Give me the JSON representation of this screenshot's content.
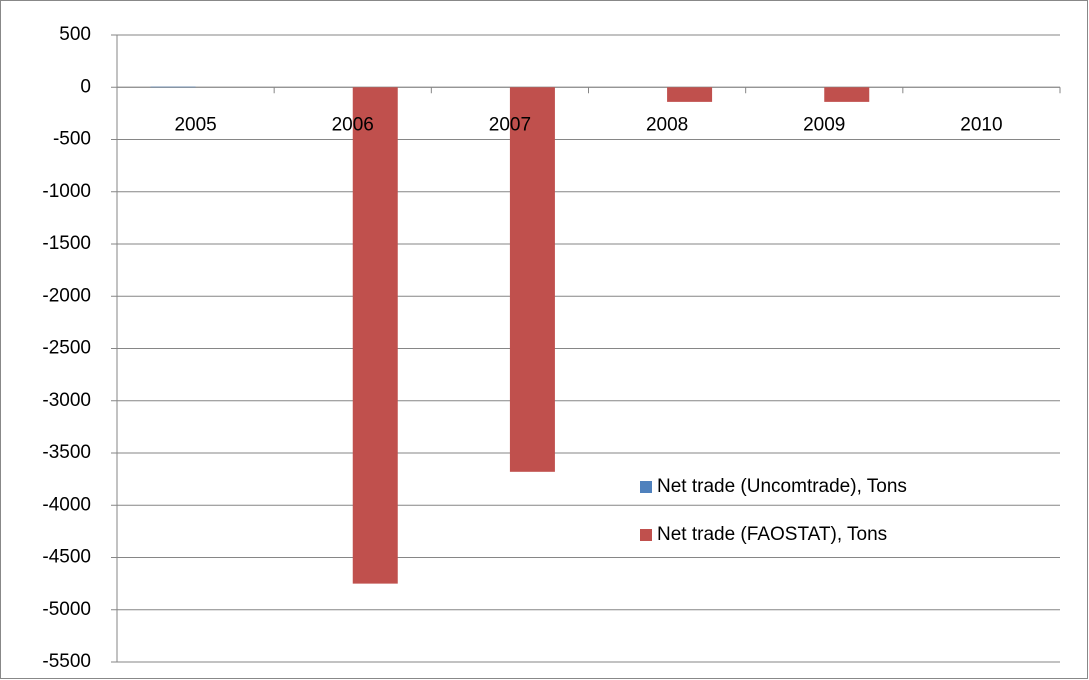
{
  "chart_data": {
    "type": "bar",
    "categories": [
      "2005",
      "2006",
      "2007",
      "2008",
      "2009",
      "2010"
    ],
    "series": [
      {
        "name": "Net trade (Uncomtrade), Tons",
        "color": "#4f81bd",
        "values": [
          5,
          0,
          0,
          0,
          0,
          0
        ]
      },
      {
        "name": "Net trade (FAOSTAT), Tons",
        "color": "#c0504d",
        "values": [
          0,
          -4750,
          -3680,
          -140,
          -140,
          0
        ]
      }
    ],
    "ylim": [
      -5500,
      500
    ],
    "yticks": [
      500,
      0,
      -500,
      -1000,
      -1500,
      -2000,
      -2500,
      -3000,
      -3500,
      -4000,
      -4500,
      -5000,
      -5500
    ],
    "grid": true,
    "legend": "inside-right"
  }
}
